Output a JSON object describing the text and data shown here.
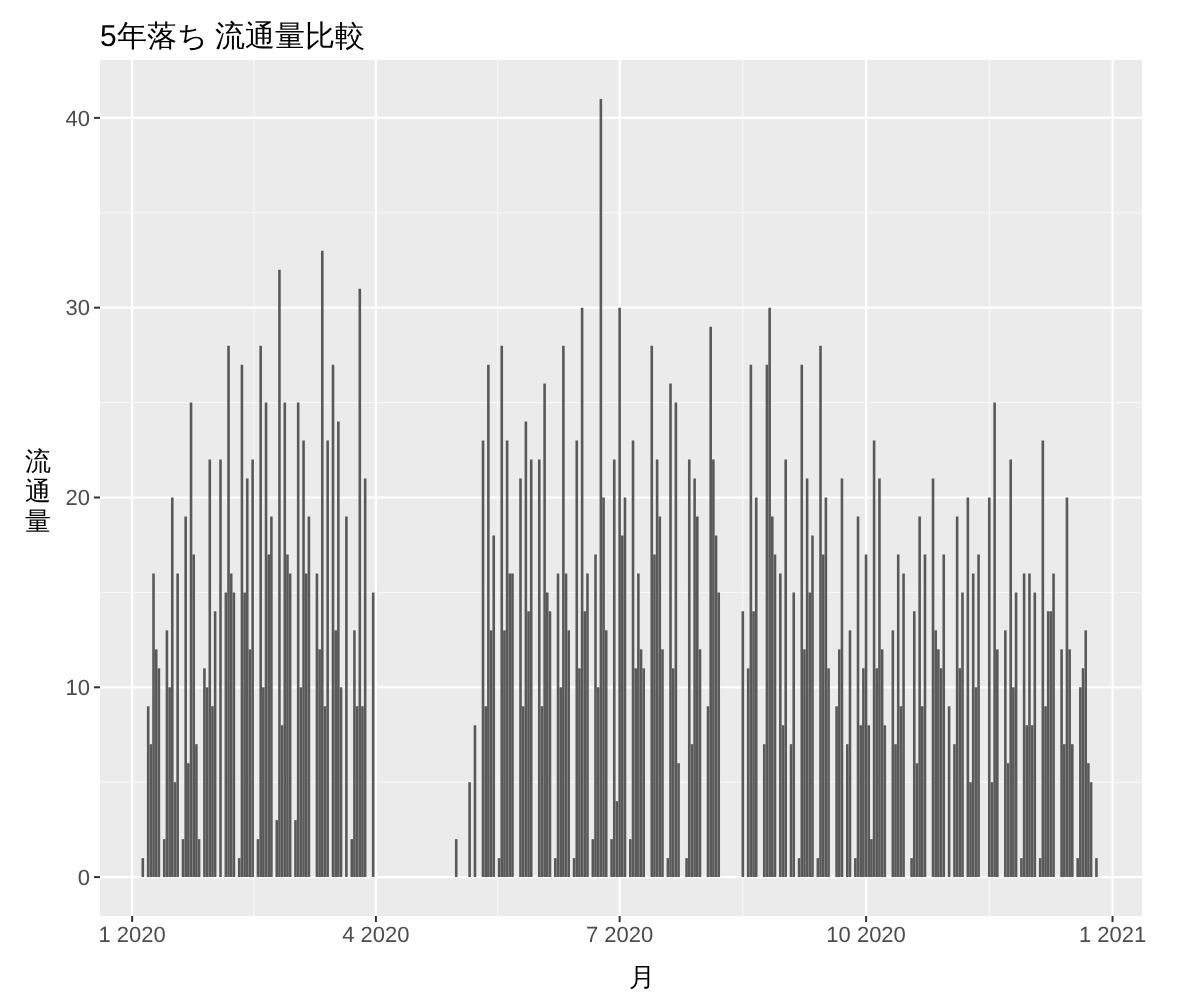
{
  "chart_data": {
    "type": "bar",
    "title": "5年落ち 流通量比較",
    "xlabel": "月",
    "ylabel": "流通量",
    "color": "#595959",
    "grid": true,
    "xlim": [
      "2019-12-20",
      "2021-01-12"
    ],
    "xticks": [
      {
        "value": "2020-01-01",
        "label": "1 2020"
      },
      {
        "value": "2020-04-01",
        "label": "4 2020"
      },
      {
        "value": "2020-07-01",
        "label": "7 2020"
      },
      {
        "value": "2020-10-01",
        "label": "10 2020"
      },
      {
        "value": "2021-01-01",
        "label": "1 2021"
      }
    ],
    "ylim": [
      -2.05,
      43.05
    ],
    "yticks": [
      0,
      10,
      20,
      30,
      40
    ],
    "x": [
      "2020-01-05",
      "2020-01-07",
      "2020-01-08",
      "2020-01-09",
      "2020-01-10",
      "2020-01-11",
      "2020-01-13",
      "2020-01-14",
      "2020-01-15",
      "2020-01-16",
      "2020-01-17",
      "2020-01-18",
      "2020-01-20",
      "2020-01-21",
      "2020-01-22",
      "2020-01-23",
      "2020-01-24",
      "2020-01-25",
      "2020-01-26",
      "2020-01-28",
      "2020-01-29",
      "2020-01-30",
      "2020-01-31",
      "2020-02-01",
      "2020-02-03",
      "2020-02-05",
      "2020-02-06",
      "2020-02-07",
      "2020-02-08",
      "2020-02-10",
      "2020-02-11",
      "2020-02-12",
      "2020-02-13",
      "2020-02-14",
      "2020-02-15",
      "2020-02-17",
      "2020-02-18",
      "2020-02-19",
      "2020-02-20",
      "2020-02-21",
      "2020-02-22",
      "2020-02-24",
      "2020-02-25",
      "2020-02-26",
      "2020-02-27",
      "2020-02-28",
      "2020-02-29",
      "2020-03-02",
      "2020-03-03",
      "2020-03-04",
      "2020-03-05",
      "2020-03-06",
      "2020-03-07",
      "2020-03-10",
      "2020-03-11",
      "2020-03-12",
      "2020-03-13",
      "2020-03-14",
      "2020-03-16",
      "2020-03-17",
      "2020-03-18",
      "2020-03-19",
      "2020-03-21",
      "2020-03-23",
      "2020-03-24",
      "2020-03-25",
      "2020-03-26",
      "2020-03-27",
      "2020-03-28",
      "2020-03-31",
      "2020-05-01",
      "2020-05-06",
      "2020-05-08",
      "2020-05-11",
      "2020-05-12",
      "2020-05-13",
      "2020-05-14",
      "2020-05-15",
      "2020-05-17",
      "2020-05-18",
      "2020-05-19",
      "2020-05-20",
      "2020-05-21",
      "2020-05-22",
      "2020-05-25",
      "2020-05-26",
      "2020-05-27",
      "2020-05-28",
      "2020-05-29",
      "2020-06-01",
      "2020-06-02",
      "2020-06-03",
      "2020-06-04",
      "2020-06-05",
      "2020-06-07",
      "2020-06-08",
      "2020-06-09",
      "2020-06-10",
      "2020-06-11",
      "2020-06-12",
      "2020-06-14",
      "2020-06-15",
      "2020-06-16",
      "2020-06-17",
      "2020-06-18",
      "2020-06-19",
      "2020-06-21",
      "2020-06-22",
      "2020-06-23",
      "2020-06-24",
      "2020-06-25",
      "2020-06-26",
      "2020-06-28",
      "2020-06-29",
      "2020-06-30",
      "2020-07-01",
      "2020-07-02",
      "2020-07-03",
      "2020-07-05",
      "2020-07-06",
      "2020-07-07",
      "2020-07-08",
      "2020-07-09",
      "2020-07-10",
      "2020-07-13",
      "2020-07-14",
      "2020-07-15",
      "2020-07-16",
      "2020-07-17",
      "2020-07-19",
      "2020-07-20",
      "2020-07-21",
      "2020-07-22",
      "2020-07-23",
      "2020-07-26",
      "2020-07-27",
      "2020-07-28",
      "2020-07-29",
      "2020-07-30",
      "2020-07-31",
      "2020-08-03",
      "2020-08-04",
      "2020-08-05",
      "2020-08-06",
      "2020-08-07",
      "2020-08-16",
      "2020-08-18",
      "2020-08-19",
      "2020-08-20",
      "2020-08-21",
      "2020-08-24",
      "2020-08-25",
      "2020-08-26",
      "2020-08-27",
      "2020-08-28",
      "2020-08-30",
      "2020-08-31",
      "2020-09-01",
      "2020-09-03",
      "2020-09-04",
      "2020-09-06",
      "2020-09-07",
      "2020-09-08",
      "2020-09-09",
      "2020-09-10",
      "2020-09-11",
      "2020-09-13",
      "2020-09-14",
      "2020-09-15",
      "2020-09-16",
      "2020-09-17",
      "2020-09-20",
      "2020-09-21",
      "2020-09-22",
      "2020-09-24",
      "2020-09-25",
      "2020-09-27",
      "2020-09-28",
      "2020-09-29",
      "2020-09-30",
      "2020-10-01",
      "2020-10-02",
      "2020-10-03",
      "2020-10-04",
      "2020-10-05",
      "2020-10-06",
      "2020-10-07",
      "2020-10-08",
      "2020-10-11",
      "2020-10-12",
      "2020-10-13",
      "2020-10-14",
      "2020-10-15",
      "2020-10-18",
      "2020-10-19",
      "2020-10-20",
      "2020-10-21",
      "2020-10-22",
      "2020-10-23",
      "2020-10-26",
      "2020-10-27",
      "2020-10-28",
      "2020-10-29",
      "2020-10-30",
      "2020-11-01",
      "2020-11-03",
      "2020-11-04",
      "2020-11-05",
      "2020-11-06",
      "2020-11-08",
      "2020-11-09",
      "2020-11-10",
      "2020-11-11",
      "2020-11-12",
      "2020-11-16",
      "2020-11-17",
      "2020-11-18",
      "2020-11-19",
      "2020-11-22",
      "2020-11-23",
      "2020-11-24",
      "2020-11-25",
      "2020-11-26",
      "2020-11-28",
      "2020-11-29",
      "2020-11-30",
      "2020-12-01",
      "2020-12-02",
      "2020-12-03",
      "2020-12-05",
      "2020-12-06",
      "2020-12-07",
      "2020-12-08",
      "2020-12-09",
      "2020-12-10",
      "2020-12-13",
      "2020-12-14",
      "2020-12-15",
      "2020-12-16",
      "2020-12-17",
      "2020-12-19",
      "2020-12-20",
      "2020-12-21",
      "2020-12-22",
      "2020-12-23",
      "2020-12-24",
      "2020-12-26"
    ],
    "values": [
      1,
      9,
      7,
      16,
      12,
      11,
      2,
      13,
      10,
      20,
      5,
      16,
      2,
      19,
      6,
      25,
      17,
      7,
      2,
      11,
      10,
      22,
      9,
      14,
      22,
      15,
      28,
      16,
      15,
      1,
      27,
      15,
      21,
      12,
      22,
      2,
      28,
      10,
      25,
      17,
      19,
      3,
      32,
      8,
      25,
      17,
      16,
      3,
      25,
      10,
      23,
      16,
      19,
      16,
      12,
      33,
      9,
      23,
      27,
      13,
      24,
      10,
      19,
      2,
      13,
      9,
      31,
      9,
      21,
      15,
      2,
      5,
      8,
      23,
      9,
      27,
      13,
      18,
      1,
      28,
      13,
      23,
      16,
      16,
      21,
      9,
      24,
      14,
      22,
      22,
      9,
      26,
      15,
      14,
      1,
      16,
      10,
      28,
      16,
      13,
      1,
      23,
      11,
      30,
      14,
      16,
      2,
      17,
      10,
      41,
      20,
      13,
      2,
      22,
      4,
      30,
      18,
      20,
      2,
      23,
      11,
      16,
      12,
      11,
      28,
      17,
      22,
      19,
      12,
      1,
      26,
      11,
      25,
      6,
      1,
      22,
      7,
      21,
      19,
      12,
      9,
      29,
      22,
      18,
      15,
      14,
      11,
      27,
      14,
      20,
      7,
      27,
      30,
      19,
      17,
      16,
      8,
      22,
      7,
      15,
      1,
      27,
      12,
      21,
      15,
      18,
      1,
      28,
      17,
      20,
      11,
      9,
      12,
      21,
      7,
      13,
      1,
      19,
      8,
      11,
      17,
      8,
      2,
      23,
      11,
      21,
      12,
      8,
      13,
      7,
      17,
      9,
      16,
      1,
      14,
      6,
      19,
      9,
      17,
      21,
      13,
      12,
      11,
      17,
      9,
      7,
      19,
      11,
      15,
      20,
      5,
      16,
      10,
      17,
      20,
      5,
      25,
      12,
      13,
      6,
      22,
      10,
      15,
      1,
      16,
      8,
      16,
      8,
      15,
      1,
      23,
      9,
      14,
      14,
      16,
      12,
      7,
      20,
      12,
      7,
      1,
      10,
      11,
      13,
      6,
      5,
      1
    ]
  }
}
